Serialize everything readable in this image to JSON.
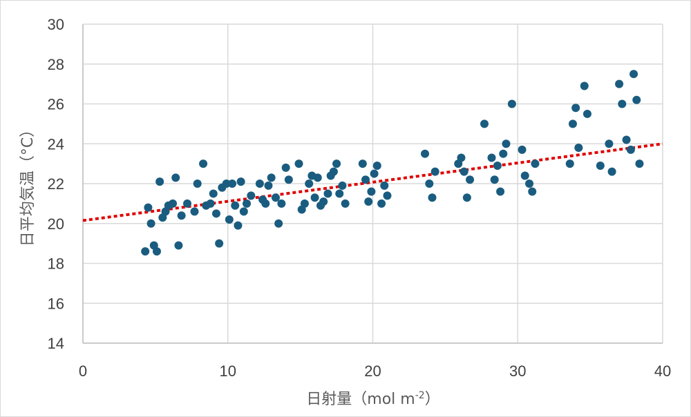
{
  "chart_data": {
    "type": "scatter",
    "title": "",
    "xlabel": "日射量（mol m-2）",
    "ylabel": "日平均気温（°C）",
    "xlim": [
      0,
      40
    ],
    "ylim": [
      14,
      30
    ],
    "xticks": [
      0,
      10,
      20,
      30,
      40
    ],
    "yticks": [
      14,
      16,
      18,
      20,
      22,
      24,
      26,
      28,
      30
    ],
    "grid": true,
    "legend": null,
    "marker_color": "#1a5c80",
    "trendline": {
      "style": "dotted",
      "color": "#e00000",
      "x": [
        0,
        40
      ],
      "y": [
        20.15,
        24.0
      ]
    },
    "series": [
      {
        "name": "日平均気温",
        "points": [
          [
            4.3,
            18.6
          ],
          [
            4.5,
            20.8
          ],
          [
            4.7,
            20.0
          ],
          [
            4.9,
            18.9
          ],
          [
            5.1,
            18.6
          ],
          [
            5.3,
            22.1
          ],
          [
            5.5,
            20.3
          ],
          [
            5.7,
            20.6
          ],
          [
            5.9,
            20.9
          ],
          [
            6.2,
            21.0
          ],
          [
            6.4,
            22.3
          ],
          [
            6.6,
            18.9
          ],
          [
            6.8,
            20.4
          ],
          [
            7.2,
            21.0
          ],
          [
            7.7,
            20.6
          ],
          [
            7.9,
            22.0
          ],
          [
            8.3,
            23.0
          ],
          [
            8.5,
            20.9
          ],
          [
            8.8,
            21.0
          ],
          [
            9.0,
            21.5
          ],
          [
            9.2,
            20.5
          ],
          [
            9.4,
            19.0
          ],
          [
            9.6,
            21.8
          ],
          [
            9.9,
            22.0
          ],
          [
            10.1,
            20.2
          ],
          [
            10.3,
            22.0
          ],
          [
            10.5,
            20.9
          ],
          [
            10.7,
            19.9
          ],
          [
            10.9,
            22.1
          ],
          [
            11.1,
            20.6
          ],
          [
            11.3,
            21.0
          ],
          [
            11.6,
            21.4
          ],
          [
            12.2,
            22.0
          ],
          [
            12.4,
            21.2
          ],
          [
            12.6,
            21.0
          ],
          [
            12.8,
            21.9
          ],
          [
            13.0,
            22.3
          ],
          [
            13.3,
            21.3
          ],
          [
            13.5,
            20.0
          ],
          [
            13.7,
            21.0
          ],
          [
            14.0,
            22.8
          ],
          [
            14.2,
            22.2
          ],
          [
            14.9,
            23.0
          ],
          [
            15.1,
            20.7
          ],
          [
            15.3,
            21.0
          ],
          [
            15.6,
            22.0
          ],
          [
            15.8,
            22.4
          ],
          [
            16.0,
            21.3
          ],
          [
            16.2,
            22.3
          ],
          [
            16.4,
            20.9
          ],
          [
            16.6,
            21.1
          ],
          [
            16.9,
            21.5
          ],
          [
            17.1,
            22.4
          ],
          [
            17.3,
            22.6
          ],
          [
            17.5,
            23.0
          ],
          [
            17.7,
            21.5
          ],
          [
            17.9,
            21.9
          ],
          [
            18.1,
            21.0
          ],
          [
            19.3,
            23.0
          ],
          [
            19.5,
            22.2
          ],
          [
            19.7,
            21.1
          ],
          [
            19.9,
            21.6
          ],
          [
            20.1,
            22.5
          ],
          [
            20.3,
            22.9
          ],
          [
            20.6,
            21.0
          ],
          [
            20.8,
            21.9
          ],
          [
            21.0,
            21.4
          ],
          [
            23.6,
            23.5
          ],
          [
            23.9,
            22.0
          ],
          [
            24.1,
            21.3
          ],
          [
            24.3,
            22.6
          ],
          [
            25.9,
            23.0
          ],
          [
            26.1,
            23.3
          ],
          [
            26.3,
            22.6
          ],
          [
            26.5,
            21.3
          ],
          [
            26.7,
            22.2
          ],
          [
            27.7,
            25.0
          ],
          [
            28.2,
            23.3
          ],
          [
            28.4,
            22.2
          ],
          [
            28.6,
            22.9
          ],
          [
            28.8,
            21.6
          ],
          [
            29.0,
            23.5
          ],
          [
            29.2,
            24.0
          ],
          [
            29.6,
            26.0
          ],
          [
            30.3,
            23.7
          ],
          [
            30.5,
            22.4
          ],
          [
            30.8,
            22.0
          ],
          [
            31.0,
            21.6
          ],
          [
            31.2,
            23.0
          ],
          [
            33.6,
            23.0
          ],
          [
            33.8,
            25.0
          ],
          [
            34.0,
            25.8
          ],
          [
            34.2,
            23.8
          ],
          [
            34.6,
            26.9
          ],
          [
            34.8,
            25.5
          ],
          [
            35.7,
            22.9
          ],
          [
            36.3,
            24.0
          ],
          [
            36.5,
            22.6
          ],
          [
            37.0,
            27.0
          ],
          [
            37.2,
            26.0
          ],
          [
            37.5,
            24.2
          ],
          [
            37.8,
            23.7
          ],
          [
            38.0,
            27.5
          ],
          [
            38.2,
            26.2
          ],
          [
            38.4,
            23.0
          ]
        ]
      }
    ],
    "axis_labels": {
      "x_label_main": "日射量（mol m",
      "x_label_sup": "-2",
      "x_label_end": "）",
      "y_label": "日平均気温（°C）"
    }
  }
}
